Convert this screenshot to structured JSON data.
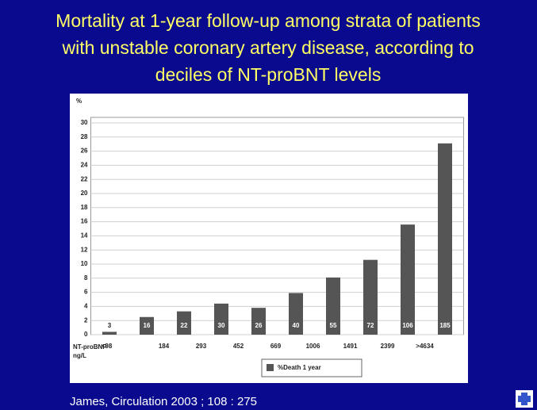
{
  "chart_data": {
    "type": "bar",
    "title_lines": [
      "Mortality at 1-year follow-up among strata of patients",
      "with unstable coronary artery disease, according to",
      "deciles of NT-proBNT levels"
    ],
    "y_label": "%",
    "x_label_lines": [
      "NT-proBNP",
      "ng/L"
    ],
    "boundary_labels": [
      "<98",
      "184",
      "293",
      "452",
      "669",
      "1006",
      "1491",
      "2399",
      ">4634"
    ],
    "series": [
      {
        "name": "%Death 1 year",
        "color": "#555555",
        "values": [
          0.4,
          2.5,
          3.3,
          4.4,
          3.8,
          5.9,
          8.1,
          10.6,
          15.6,
          27.1
        ],
        "bar_labels": [
          3,
          16,
          22,
          30,
          26,
          40,
          55,
          72,
          106,
          185
        ]
      }
    ],
    "ylim": [
      0,
      30
    ],
    "yticks": [
      0,
      2,
      4,
      6,
      8,
      10,
      12,
      14,
      16,
      18,
      20,
      22,
      24,
      26,
      28,
      30
    ],
    "grid": true,
    "source": "James, Circulation 2003 ; 108 : 275"
  }
}
